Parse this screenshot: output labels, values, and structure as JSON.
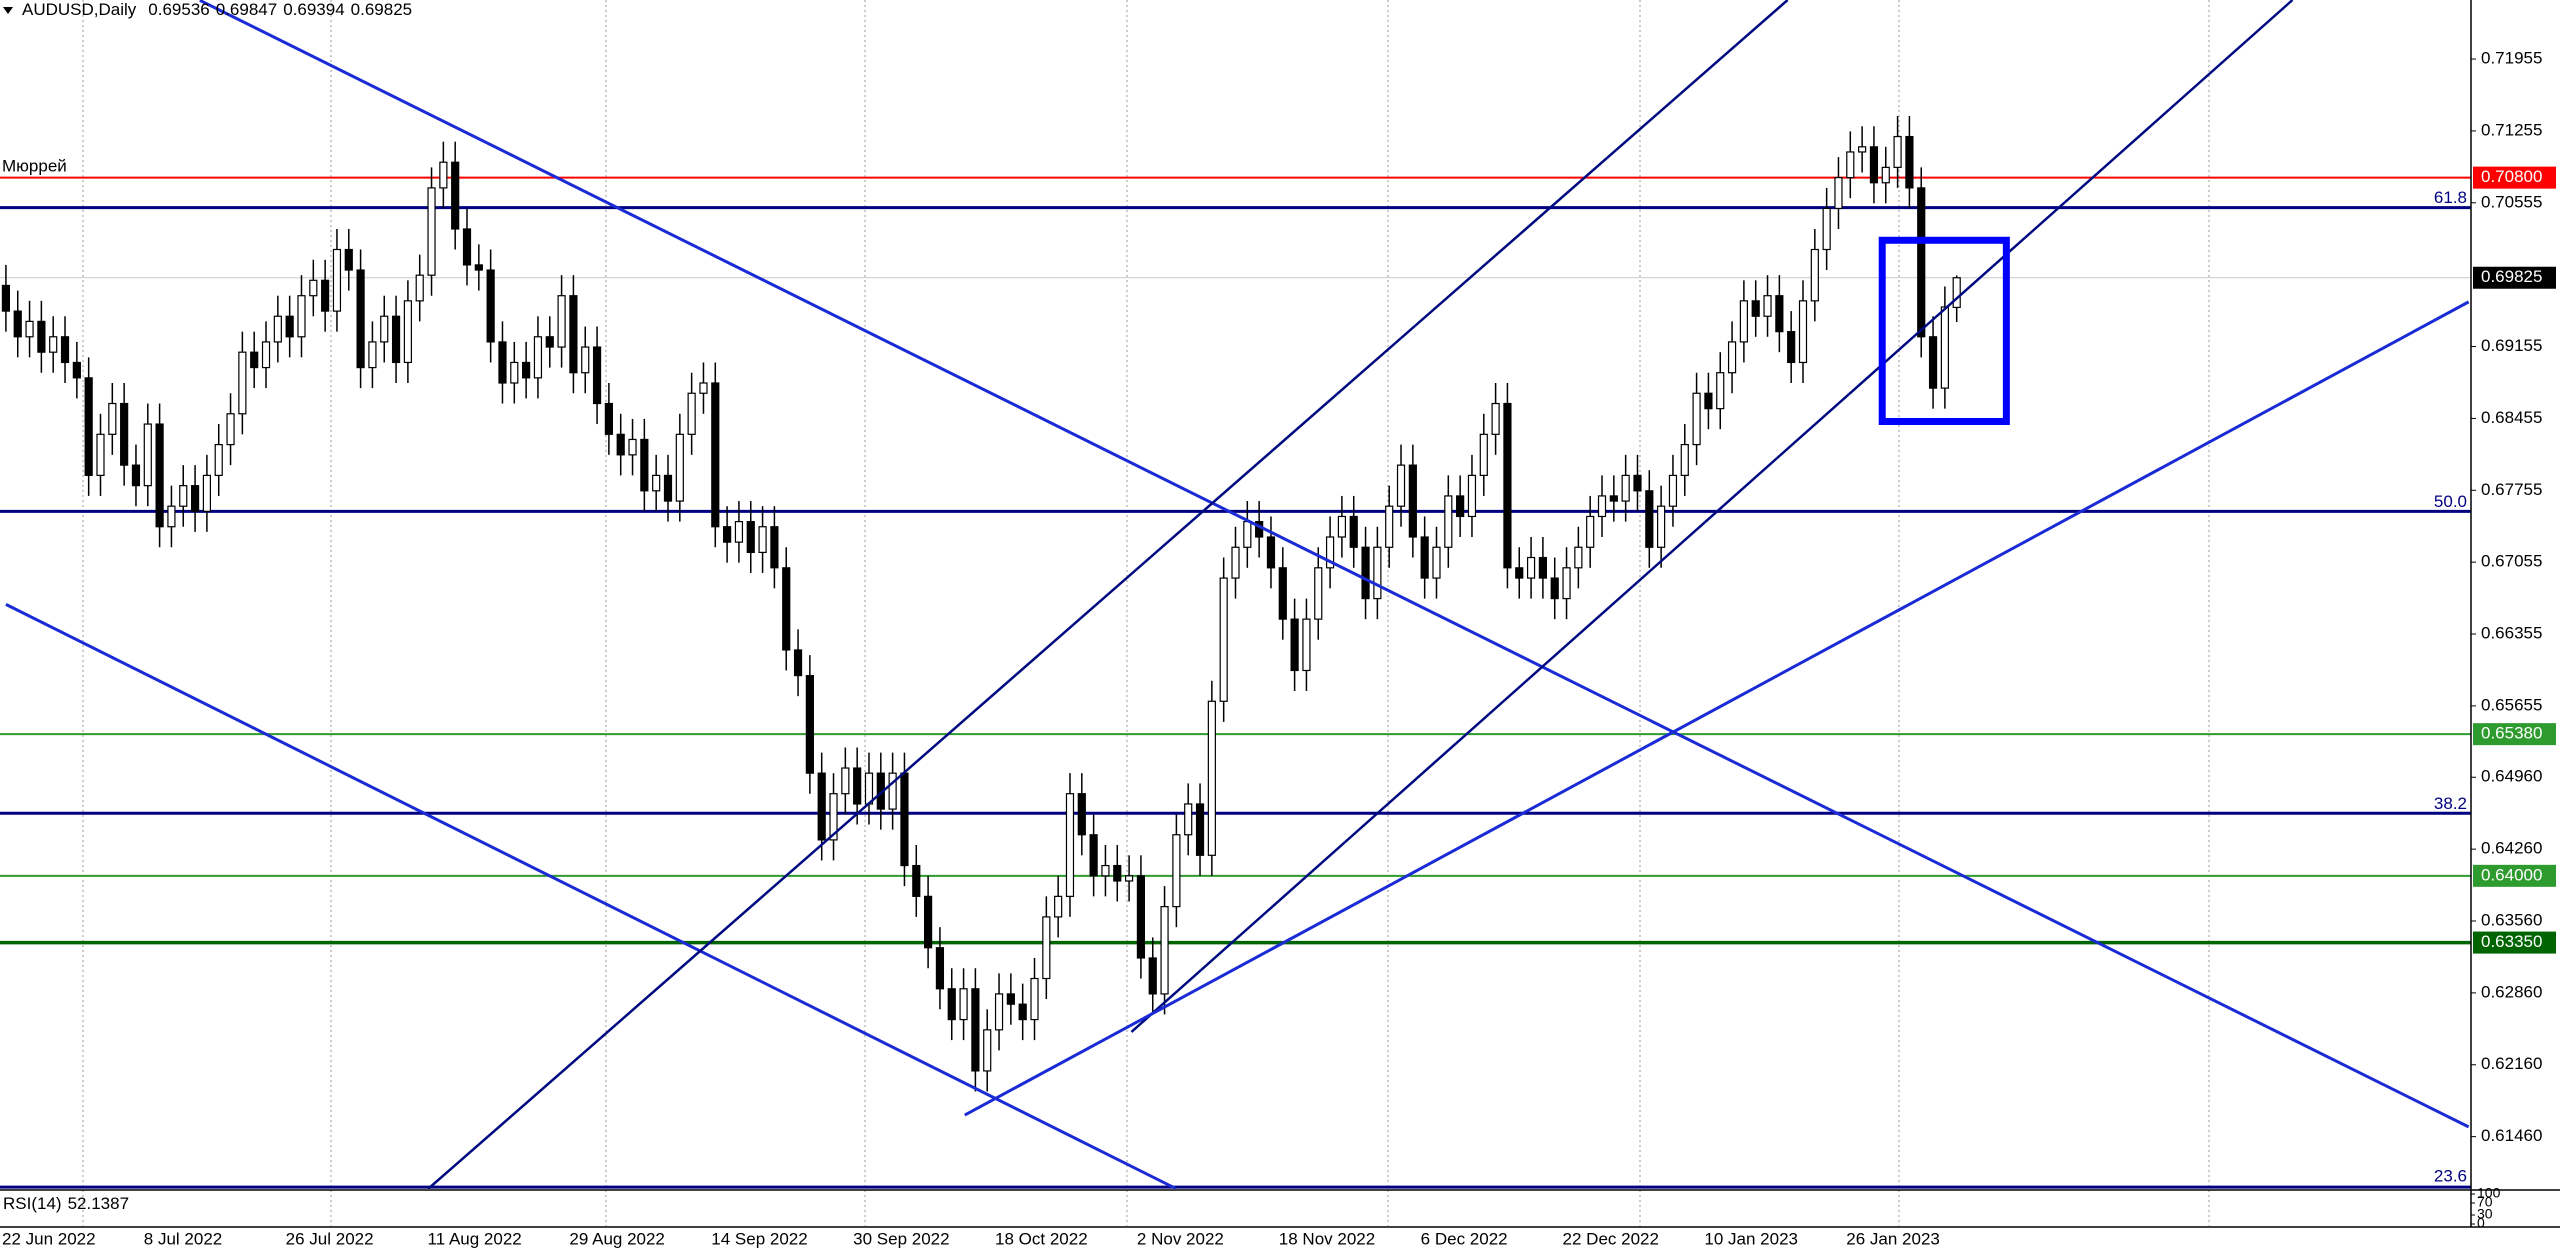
{
  "chart_data": {
    "type": "candlestick",
    "symbol": "AUDUSD,Daily",
    "annotation": "Мюррей",
    "categories": [
      "22 Jun 2022",
      null,
      null,
      null,
      null,
      null,
      null,
      null,
      null,
      null,
      null,
      null,
      "8 Jul 2022",
      null,
      null,
      null,
      null,
      null,
      null,
      null,
      null,
      null,
      null,
      null,
      "26 Jul 2022",
      null,
      null,
      null,
      null,
      null,
      null,
      null,
      null,
      null,
      null,
      null,
      "11 Aug 2022",
      null,
      null,
      null,
      null,
      null,
      null,
      null,
      null,
      null,
      null,
      null,
      "29 Aug 2022",
      null,
      null,
      null,
      null,
      null,
      null,
      null,
      null,
      null,
      null,
      null,
      "14 Sep 2022",
      null,
      null,
      null,
      null,
      null,
      null,
      null,
      null,
      null,
      null,
      null,
      "30 Sep 2022",
      null,
      null,
      null,
      null,
      null,
      null,
      null,
      null,
      null,
      null,
      null,
      "18 Oct 2022",
      null,
      null,
      null,
      null,
      null,
      null,
      null,
      null,
      null,
      null,
      null,
      "2 Nov 2022",
      null,
      null,
      null,
      null,
      null,
      null,
      null,
      null,
      null,
      null,
      null,
      "18 Nov 2022",
      null,
      null,
      null,
      null,
      null,
      null,
      null,
      null,
      null,
      null,
      null,
      "6 Dec 2022",
      null,
      null,
      null,
      null,
      null,
      null,
      null,
      null,
      null,
      null,
      null,
      "22 Dec 2022",
      null,
      null,
      null,
      null,
      null,
      null,
      null,
      null,
      null,
      null,
      null,
      "10 Jan 2023",
      null,
      null,
      null,
      null,
      null,
      null,
      null,
      null,
      null,
      null,
      null,
      "26 Jan 2023",
      null,
      null,
      null,
      null,
      null,
      null,
      null,
      null,
      null
    ],
    "open": [
      0.6975,
      0.695,
      0.6925,
      0.694,
      0.691,
      0.6925,
      0.69,
      0.6885,
      0.679,
      0.683,
      0.686,
      0.68,
      0.678,
      0.684,
      0.674,
      0.676,
      0.678,
      0.6755,
      0.679,
      0.682,
      0.685,
      0.691,
      0.6895,
      0.692,
      0.6945,
      0.6925,
      0.6965,
      0.698,
      0.695,
      0.701,
      0.699,
      0.6895,
      0.692,
      0.6945,
      0.69,
      0.696,
      0.6985,
      0.707,
      0.7095,
      0.703,
      0.6995,
      0.699,
      0.692,
      0.688,
      0.69,
      0.6885,
      0.6925,
      0.6915,
      0.6965,
      0.689,
      0.6915,
      0.686,
      0.683,
      0.681,
      0.6825,
      0.6775,
      0.679,
      0.6765,
      0.683,
      0.687,
      0.688,
      0.674,
      0.6725,
      0.6745,
      0.6715,
      0.674,
      0.67,
      0.662,
      0.6595,
      0.65,
      0.6435,
      0.648,
      0.6505,
      0.647,
      0.65,
      0.6465,
      0.65,
      0.641,
      0.638,
      0.633,
      0.629,
      0.626,
      0.629,
      0.621,
      0.625,
      0.6285,
      0.6275,
      0.626,
      0.63,
      0.636,
      0.638,
      0.648,
      0.644,
      0.64,
      0.641,
      0.6395,
      0.64,
      0.632,
      0.6285,
      0.637,
      0.644,
      0.647,
      0.642,
      0.657,
      0.669,
      0.672,
      0.6745,
      0.673,
      0.67,
      0.665,
      0.66,
      0.665,
      0.67,
      0.673,
      0.675,
      0.672,
      0.667,
      0.672,
      0.676,
      0.68,
      0.673,
      0.669,
      0.672,
      0.677,
      0.675,
      0.679,
      0.683,
      0.686,
      0.67,
      0.669,
      0.671,
      0.669,
      0.667,
      0.67,
      0.672,
      0.675,
      0.677,
      0.6765,
      0.679,
      0.6775,
      0.672,
      0.676,
      0.679,
      0.682,
      0.687,
      0.6855,
      0.689,
      0.692,
      0.696,
      0.6945,
      0.6965,
      0.693,
      0.69,
      0.696,
      0.701,
      0.705,
      0.708,
      0.7105,
      0.711,
      0.7075,
      0.709,
      0.712,
      0.707,
      0.6925,
      0.6875,
      0.69536
    ],
    "high": [
      0.6995,
      0.697,
      0.696,
      0.696,
      0.6945,
      0.6945,
      0.692,
      0.6905,
      0.685,
      0.688,
      0.688,
      0.682,
      0.686,
      0.686,
      0.678,
      0.68,
      0.68,
      0.681,
      0.684,
      0.687,
      0.693,
      0.693,
      0.694,
      0.6965,
      0.6965,
      0.6985,
      0.7,
      0.7,
      0.703,
      0.703,
      0.701,
      0.694,
      0.6965,
      0.6965,
      0.698,
      0.7005,
      0.709,
      0.7115,
      0.7115,
      0.705,
      0.7015,
      0.701,
      0.694,
      0.692,
      0.692,
      0.6945,
      0.6945,
      0.6985,
      0.6985,
      0.6935,
      0.6935,
      0.688,
      0.685,
      0.6845,
      0.6845,
      0.681,
      0.681,
      0.685,
      0.689,
      0.69,
      0.69,
      0.676,
      0.6765,
      0.6765,
      0.676,
      0.676,
      0.672,
      0.664,
      0.6615,
      0.652,
      0.65,
      0.6525,
      0.6525,
      0.652,
      0.652,
      0.652,
      0.652,
      0.643,
      0.64,
      0.635,
      0.631,
      0.631,
      0.631,
      0.627,
      0.6305,
      0.6305,
      0.6295,
      0.632,
      0.638,
      0.64,
      0.65,
      0.65,
      0.646,
      0.643,
      0.643,
      0.642,
      0.642,
      0.634,
      0.639,
      0.646,
      0.649,
      0.649,
      0.659,
      0.671,
      0.674,
      0.6765,
      0.6765,
      0.675,
      0.672,
      0.667,
      0.667,
      0.672,
      0.675,
      0.677,
      0.677,
      0.674,
      0.674,
      0.678,
      0.682,
      0.682,
      0.675,
      0.674,
      0.679,
      0.679,
      0.681,
      0.685,
      0.688,
      0.688,
      0.672,
      0.673,
      0.673,
      0.671,
      0.672,
      0.674,
      0.677,
      0.679,
      0.679,
      0.681,
      0.681,
      0.6795,
      0.678,
      0.681,
      0.684,
      0.689,
      0.689,
      0.691,
      0.694,
      0.698,
      0.698,
      0.6985,
      0.6985,
      0.695,
      0.698,
      0.703,
      0.707,
      0.71,
      0.7125,
      0.713,
      0.713,
      0.711,
      0.714,
      0.714,
      0.709,
      0.6945,
      0.6974,
      0.69847
    ],
    "low": [
      0.693,
      0.6905,
      0.6905,
      0.689,
      0.689,
      0.688,
      0.6865,
      0.677,
      0.677,
      0.681,
      0.678,
      0.676,
      0.676,
      0.672,
      0.672,
      0.674,
      0.6735,
      0.6735,
      0.677,
      0.68,
      0.683,
      0.6875,
      0.6875,
      0.69,
      0.6905,
      0.6905,
      0.6945,
      0.693,
      0.693,
      0.697,
      0.6875,
      0.6875,
      0.69,
      0.688,
      0.688,
      0.694,
      0.6965,
      0.705,
      0.701,
      0.6975,
      0.697,
      0.69,
      0.686,
      0.686,
      0.6865,
      0.6865,
      0.6895,
      0.6895,
      0.687,
      0.687,
      0.684,
      0.681,
      0.679,
      0.679,
      0.6755,
      0.6755,
      0.6745,
      0.6745,
      0.681,
      0.685,
      0.672,
      0.6705,
      0.6705,
      0.6695,
      0.6695,
      0.668,
      0.66,
      0.6575,
      0.648,
      0.6415,
      0.6415,
      0.646,
      0.645,
      0.645,
      0.6445,
      0.6445,
      0.639,
      0.636,
      0.631,
      0.627,
      0.624,
      0.624,
      0.619,
      0.619,
      0.623,
      0.6255,
      0.624,
      0.624,
      0.628,
      0.634,
      0.636,
      0.642,
      0.638,
      0.638,
      0.6375,
      0.6375,
      0.63,
      0.6265,
      0.6265,
      0.635,
      0.642,
      0.64,
      0.64,
      0.655,
      0.667,
      0.67,
      0.671,
      0.668,
      0.663,
      0.658,
      0.658,
      0.663,
      0.668,
      0.671,
      0.67,
      0.665,
      0.665,
      0.67,
      0.674,
      0.671,
      0.667,
      0.667,
      0.67,
      0.673,
      0.673,
      0.677,
      0.681,
      0.668,
      0.667,
      0.667,
      0.667,
      0.665,
      0.665,
      0.668,
      0.67,
      0.673,
      0.6745,
      0.6745,
      0.6755,
      0.67,
      0.67,
      0.674,
      0.677,
      0.68,
      0.6835,
      0.6835,
      0.687,
      0.69,
      0.6925,
      0.6925,
      0.691,
      0.688,
      0.688,
      0.694,
      0.699,
      0.703,
      0.706,
      0.7085,
      0.7055,
      0.7055,
      0.707,
      0.705,
      0.6905,
      0.6855,
      0.6855,
      0.69394
    ],
    "close": [
      0.695,
      0.6925,
      0.694,
      0.691,
      0.6925,
      0.69,
      0.6885,
      0.679,
      0.683,
      0.686,
      0.68,
      0.678,
      0.684,
      0.674,
      0.676,
      0.678,
      0.6755,
      0.679,
      0.682,
      0.685,
      0.691,
      0.6895,
      0.692,
      0.6945,
      0.6925,
      0.6965,
      0.698,
      0.695,
      0.701,
      0.699,
      0.6895,
      0.692,
      0.6945,
      0.69,
      0.696,
      0.6985,
      0.707,
      0.7095,
      0.703,
      0.6995,
      0.699,
      0.692,
      0.688,
      0.69,
      0.6885,
      0.6925,
      0.6915,
      0.6965,
      0.689,
      0.6915,
      0.686,
      0.683,
      0.681,
      0.6825,
      0.6775,
      0.679,
      0.6765,
      0.683,
      0.687,
      0.688,
      0.674,
      0.6725,
      0.6745,
      0.6715,
      0.674,
      0.67,
      0.662,
      0.6595,
      0.65,
      0.6435,
      0.648,
      0.6505,
      0.647,
      0.65,
      0.6465,
      0.65,
      0.641,
      0.638,
      0.633,
      0.629,
      0.626,
      0.629,
      0.621,
      0.625,
      0.6285,
      0.6275,
      0.626,
      0.63,
      0.636,
      0.638,
      0.648,
      0.644,
      0.64,
      0.641,
      0.6395,
      0.64,
      0.632,
      0.6285,
      0.637,
      0.644,
      0.647,
      0.642,
      0.657,
      0.669,
      0.672,
      0.6745,
      0.673,
      0.67,
      0.665,
      0.66,
      0.665,
      0.67,
      0.673,
      0.675,
      0.672,
      0.667,
      0.672,
      0.676,
      0.68,
      0.673,
      0.669,
      0.672,
      0.677,
      0.675,
      0.679,
      0.683,
      0.686,
      0.67,
      0.669,
      0.671,
      0.669,
      0.667,
      0.67,
      0.672,
      0.675,
      0.677,
      0.6765,
      0.679,
      0.6775,
      0.672,
      0.676,
      0.679,
      0.682,
      0.687,
      0.6855,
      0.689,
      0.692,
      0.696,
      0.6945,
      0.6965,
      0.693,
      0.69,
      0.696,
      0.701,
      0.705,
      0.708,
      0.7105,
      0.711,
      0.7075,
      0.709,
      0.712,
      0.707,
      0.6925,
      0.6875,
      0.6954,
      0.69825
    ],
    "up_color": "#ffffff",
    "down_color": "#000000",
    "xlim": [
      -0.5,
      208.5
    ],
    "ylim": [
      0.6095,
      0.7253
    ],
    "yticks": [
      0.71955,
      0.71255,
      0.70555,
      0.69155,
      0.68455,
      0.67755,
      0.67055,
      0.66355,
      0.65655,
      {
        "value": 0.6496,
        "label": "0.64960"
      },
      {
        "value": 0.6426,
        "label": "0.64260"
      },
      {
        "value": 0.6356,
        "label": "0.63560"
      },
      {
        "value": 0.6286,
        "label": "0.62860"
      },
      {
        "value": 0.6216,
        "label": "0.62160"
      },
      {
        "value": 0.6146,
        "label": "0.61460"
      }
    ],
    "hlines": [
      {
        "value": 0.708,
        "label": "0.70800",
        "color": "#ff0000"
      },
      {
        "value": 0.6538,
        "label": "0.65380",
        "color": "#2e9b2e"
      },
      {
        "value": 0.64,
        "label": "0.64000",
        "color": "#2e9b2e"
      },
      {
        "value": 0.6335,
        "label": "0.63350",
        "color": "#006400"
      }
    ],
    "fib_color": "#000080",
    "fib_levels": [
      {
        "value": 0.70508,
        "label": "61.8"
      },
      {
        "value": 0.6755,
        "label": "50.0"
      },
      {
        "value": 0.64609,
        "label": "38.2"
      },
      {
        "value": 0.60968,
        "label": "23.6"
      }
    ],
    "trendlines": [
      {
        "x": [
          16.4,
          208.3
        ],
        "y": [
          0.72527,
          0.61555
        ],
        "color": "#1a2bd6",
        "width": 3
      },
      {
        "x": [
          0,
          99
        ],
        "y": [
          0.66644,
          0.60952
        ],
        "color": "#1a2bd6",
        "width": 3
      },
      {
        "x": [
          35.7,
          150.7
        ],
        "y": [
          0.6095,
          0.7253
        ],
        "color": "#000a80",
        "width": 2.5
      },
      {
        "x": [
          95.2,
          193.4
        ],
        "y": [
          0.6248,
          0.7253
        ],
        "color": "#000a80",
        "width": 2.5
      },
      {
        "x": [
          81.1,
          208.3
        ],
        "y": [
          0.6167,
          0.6959
        ],
        "color": "#1a2bd6",
        "width": 3
      }
    ],
    "rectangle": {
      "x": [
        158.7,
        169.2
      ],
      "y": [
        0.7019,
        0.68425
      ],
      "color": "#0000ff"
    },
    "rsi": {
      "name": "RSI(14)",
      "value": 52.1387,
      "ylim": [
        0,
        100
      ],
      "yticks": [
        100,
        70,
        30,
        0
      ]
    }
  }
}
